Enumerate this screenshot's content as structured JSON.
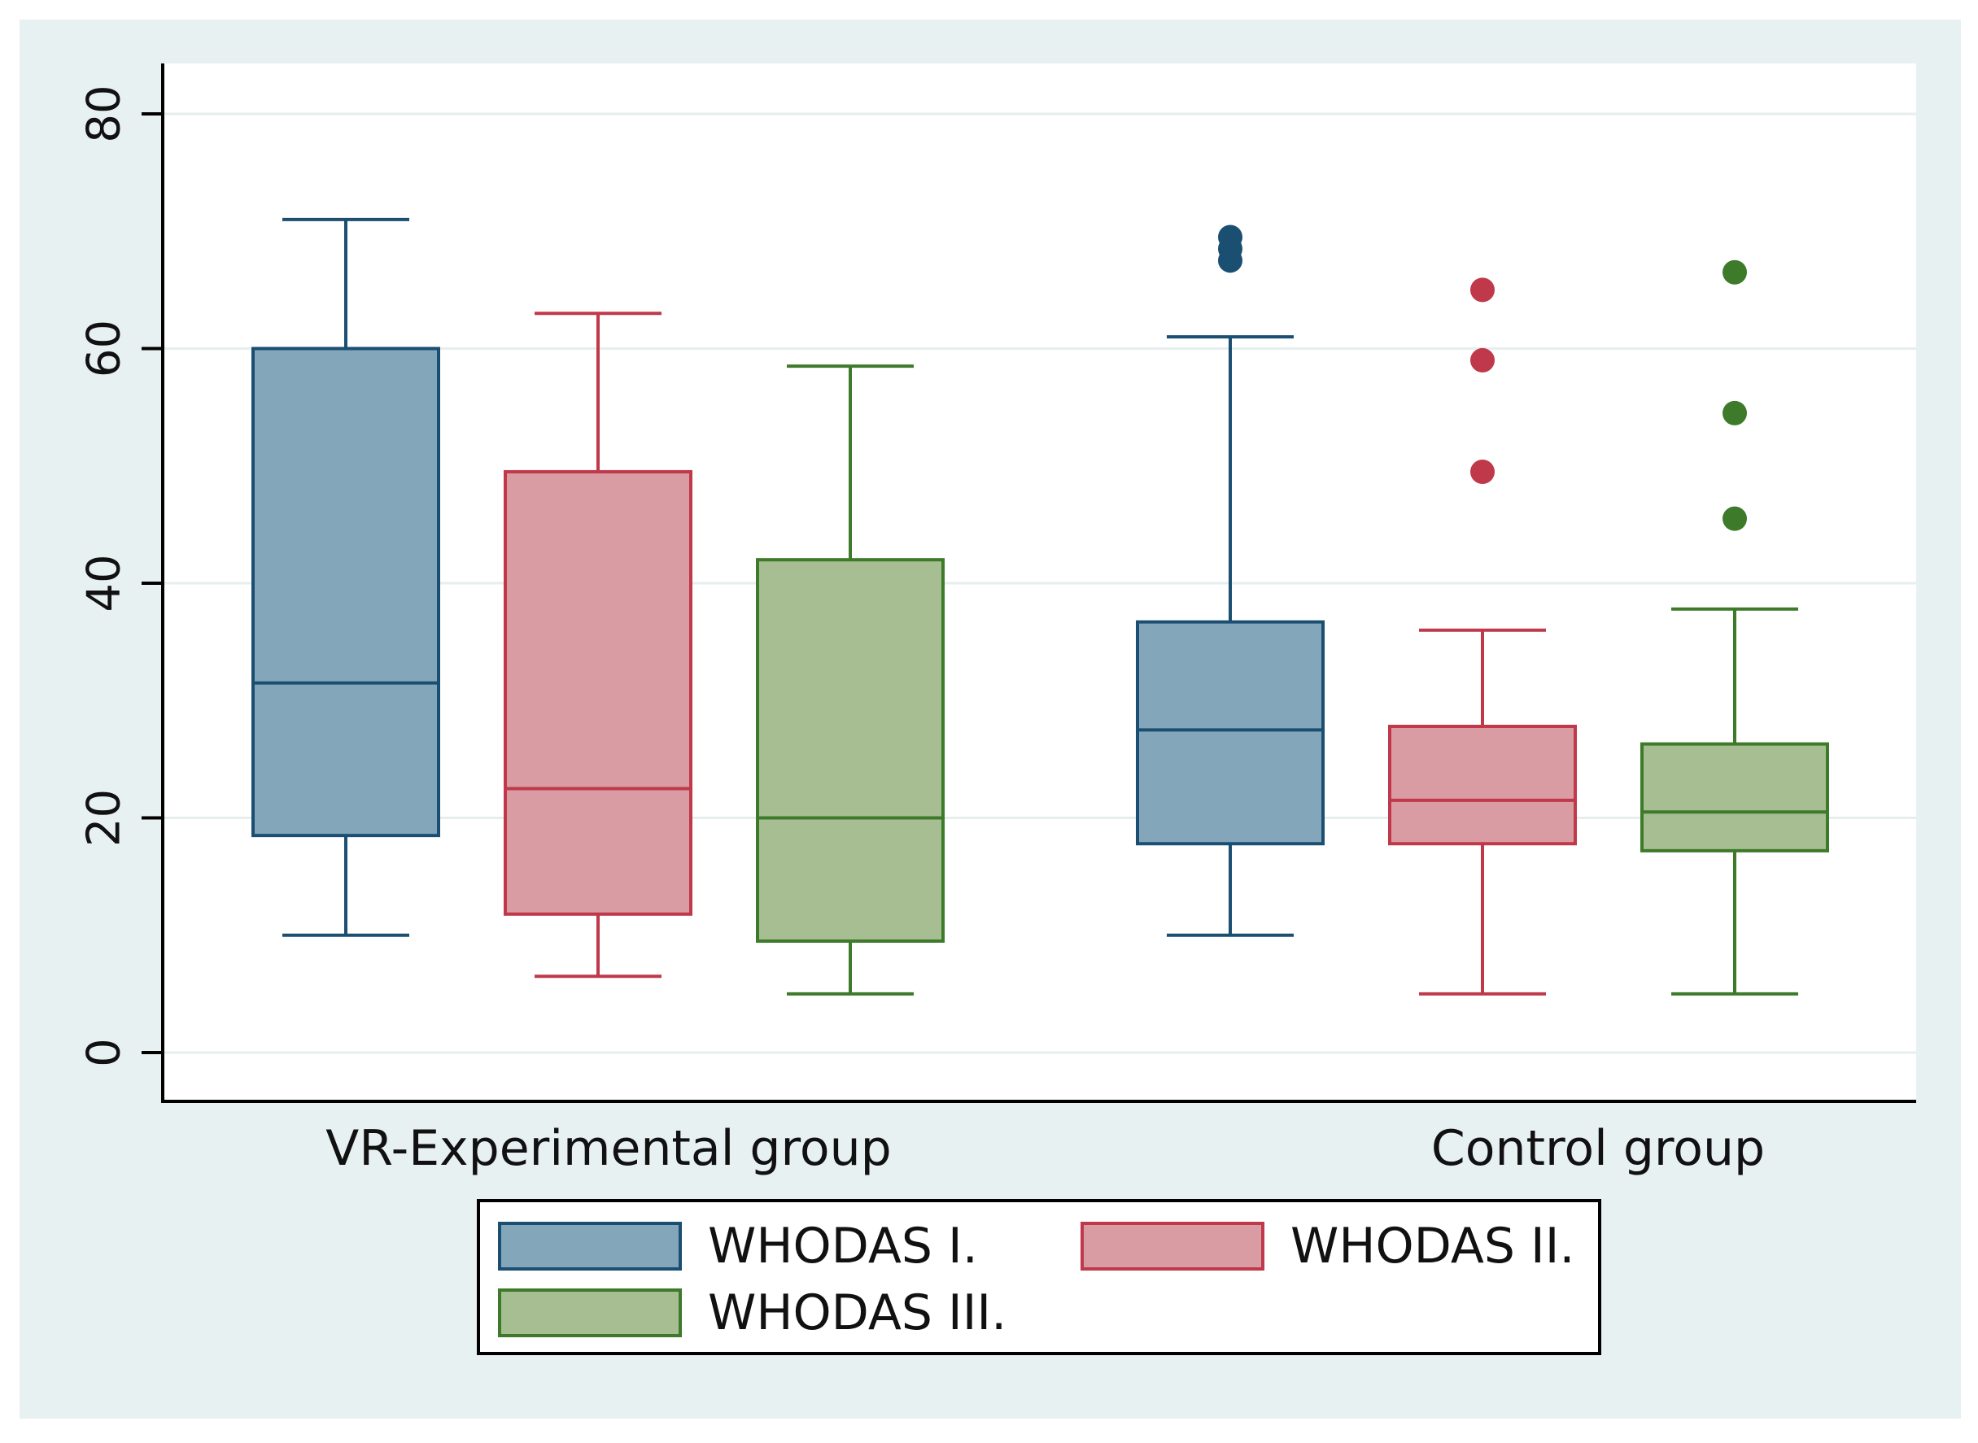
{
  "chart_data": {
    "type": "box",
    "title": "",
    "xlabel": "",
    "ylabel": "",
    "ylim": [
      -4,
      84
    ],
    "yticks": [
      0,
      20,
      40,
      60,
      80
    ],
    "ytick_labels": [
      "0",
      "20",
      "40",
      "60",
      "80"
    ],
    "grid": true,
    "categories": [
      "VR-Experimental group",
      "Control group"
    ],
    "series": [
      {
        "name": "WHODAS I.",
        "color": "#1b4f72",
        "fill": "#83a6bb",
        "boxes": [
          {
            "group": "VR-Experimental group",
            "whisker_low": 10,
            "q1": 18.5,
            "median": 31.5,
            "q3": 60,
            "whisker_high": 71,
            "outliers": []
          },
          {
            "group": "Control group",
            "whisker_low": 10,
            "q1": 17.8,
            "median": 27.5,
            "q3": 36.7,
            "whisker_high": 61,
            "outliers": [
              67.5,
              68.5,
              69.5
            ]
          }
        ]
      },
      {
        "name": "WHODAS II.",
        "color": "#c0394b",
        "fill": "#d99ca2",
        "boxes": [
          {
            "group": "VR-Experimental group",
            "whisker_low": 6.5,
            "q1": 11.8,
            "median": 22.5,
            "q3": 49.5,
            "whisker_high": 63,
            "outliers": []
          },
          {
            "group": "Control group",
            "whisker_low": 5,
            "q1": 17.8,
            "median": 21.5,
            "q3": 27.8,
            "whisker_high": 36,
            "outliers": [
              49.5,
              59,
              65
            ]
          }
        ]
      },
      {
        "name": "WHODAS III.",
        "color": "#3d7a2a",
        "fill": "#a6be91",
        "boxes": [
          {
            "group": "VR-Experimental group",
            "whisker_low": 5,
            "q1": 9.5,
            "median": 20,
            "q3": 42,
            "whisker_high": 58.5,
            "outliers": []
          },
          {
            "group": "Control group",
            "whisker_low": 5,
            "q1": 17.2,
            "median": 20.5,
            "q3": 26.3,
            "whisker_high": 37.8,
            "outliers": [
              45.5,
              54.5,
              66.5
            ]
          }
        ]
      }
    ],
    "legend": {
      "position": "bottom",
      "entries": [
        "WHODAS I.",
        "WHODAS II.",
        "WHODAS III."
      ]
    }
  },
  "colors": {
    "outer_background": "#e8f1f2",
    "plot_background": "#ffffff",
    "grid": "#e6eeee"
  }
}
